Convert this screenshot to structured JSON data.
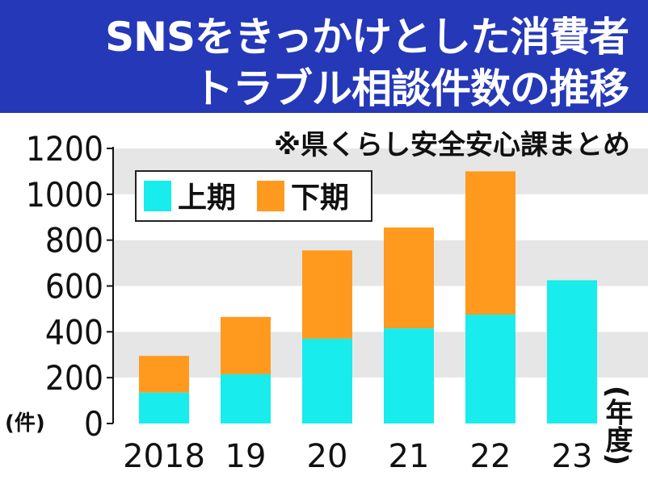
{
  "title": {
    "line1": "SNSをきっかけとした消費者",
    "line2": "トラブル相談件数の推移"
  },
  "source_note": "※県くらし安全安心課まとめ",
  "y_unit": "(件)",
  "x_unit": "(年度)",
  "colors": {
    "header_bg": "#2438b8",
    "plot_band_light": "#ffffff",
    "plot_band_dark": "#e6e6e6",
    "first_half": "#18ecec",
    "second_half": "#ff9a1e"
  },
  "chart_data": {
    "type": "bar",
    "stacked": true,
    "categories": [
      "2018",
      "19",
      "20",
      "21",
      "22",
      "23"
    ],
    "series": [
      {
        "name": "上期",
        "values": [
          135,
          215,
          370,
          415,
          475,
          625
        ]
      },
      {
        "name": "下期",
        "values": [
          160,
          250,
          385,
          440,
          625,
          null
        ]
      }
    ],
    "ylim": [
      0,
      1200
    ],
    "yticks": [
      0,
      200,
      400,
      600,
      800,
      1000,
      1200
    ],
    "legend_position": "top-left",
    "grid": "alternating horizontal bands"
  }
}
